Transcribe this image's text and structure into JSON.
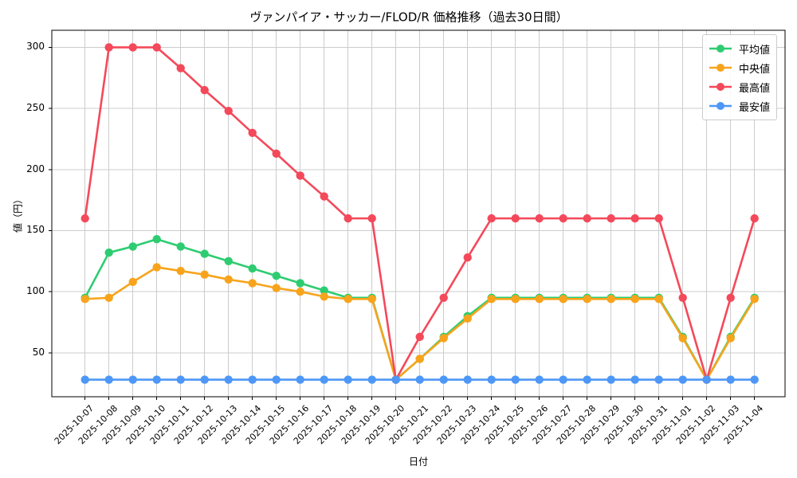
{
  "chart_data": {
    "type": "line",
    "title": "ヴァンパイア・サッカー/FLOD/R 価格推移（過去30日間）",
    "xlabel": "日付",
    "ylabel": "値（円）",
    "grid": true,
    "grid_color": "#cccccc",
    "legend_position": "upper right",
    "ylim": [
      14,
      314
    ],
    "yticks": [
      50,
      100,
      150,
      200,
      250,
      300
    ],
    "x_tick_labels": [
      "2025-10-07",
      "2025-10-08",
      "2025-10-09",
      "2025-10-10",
      "2025-10-11",
      "2025-10-12",
      "2025-10-13",
      "2025-10-14",
      "2025-10-15",
      "2025-10-16",
      "2025-10-17",
      "2025-10-18",
      "2025-10-19",
      "2025-10-20",
      "2025-10-21",
      "2025-10-22",
      "2025-10-23",
      "2025-10-24",
      "2025-10-25",
      "2025-10-26",
      "2025-10-27",
      "2025-10-28",
      "2025-10-29",
      "2025-10-30",
      "2025-10-31",
      "2025-11-01",
      "2025-11-02",
      "2025-11-03",
      "2025-11-04"
    ],
    "series": [
      {
        "key": "average",
        "name": "平均値",
        "color": "#2ecc71",
        "values": [
          95,
          132,
          137,
          143,
          137,
          131,
          125,
          119,
          113,
          107,
          101,
          95,
          95,
          28,
          45,
          63,
          80,
          95,
          95,
          95,
          95,
          95,
          95,
          95,
          95,
          63,
          28,
          63,
          95
        ]
      },
      {
        "key": "median",
        "name": "中央値",
        "color": "#f7a41c",
        "values": [
          94,
          95,
          108,
          120,
          117,
          114,
          110,
          107,
          103,
          100,
          96,
          94,
          94,
          28,
          45,
          62,
          78,
          94,
          94,
          94,
          94,
          94,
          94,
          94,
          94,
          62,
          28,
          62,
          94
        ]
      },
      {
        "key": "max",
        "name": "最高値",
        "color": "#f4495a",
        "values": [
          160,
          300,
          300,
          300,
          283,
          265,
          248,
          230,
          213,
          195,
          178,
          160,
          160,
          28,
          63,
          95,
          128,
          160,
          160,
          160,
          160,
          160,
          160,
          160,
          160,
          95,
          28,
          95,
          160
        ]
      },
      {
        "key": "min",
        "name": "最安値",
        "color": "#4d97f7",
        "values": [
          28,
          28,
          28,
          28,
          28,
          28,
          28,
          28,
          28,
          28,
          28,
          28,
          28,
          28,
          28,
          28,
          28,
          28,
          28,
          28,
          28,
          28,
          28,
          28,
          28,
          28,
          28,
          28,
          28
        ]
      }
    ]
  }
}
